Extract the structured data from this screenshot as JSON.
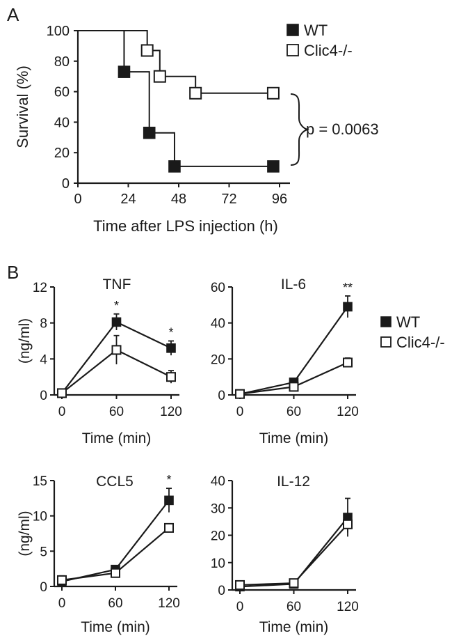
{
  "chart_data": [
    {
      "panel": "A",
      "type": "line",
      "step": true,
      "xlabel": "Time after LPS injection (h)",
      "ylabel": "Survival (%)",
      "xlim": [
        0,
        96
      ],
      "ylim": [
        0,
        100
      ],
      "xticks": [
        0,
        24,
        48,
        72,
        96
      ],
      "yticks": [
        0,
        20,
        40,
        60,
        80,
        100
      ],
      "legend": "top-right",
      "annotation": "p = 0.0063",
      "series": [
        {
          "name": "WT",
          "marker": "filled-square",
          "steps": [
            [
              0,
              100
            ],
            [
              22,
              73
            ],
            [
              34,
              33
            ],
            [
              46,
              11
            ],
            [
              93,
              11
            ]
          ],
          "points": [
            [
              22,
              73
            ],
            [
              34,
              33
            ],
            [
              46,
              11
            ],
            [
              93,
              11
            ]
          ]
        },
        {
          "name": "Clic4-/-",
          "marker": "open-square",
          "steps": [
            [
              0,
              100
            ],
            [
              33,
              87
            ],
            [
              39,
              70
            ],
            [
              56,
              59
            ],
            [
              93,
              59
            ]
          ],
          "points": [
            [
              33,
              87
            ],
            [
              39,
              70
            ],
            [
              56,
              59
            ],
            [
              93,
              59
            ]
          ]
        }
      ]
    },
    {
      "panel": "B",
      "type": "line",
      "title": "TNF",
      "xlabel": "Time (min)",
      "ylabel": "(ng/ml)",
      "x": [
        0,
        60,
        120
      ],
      "xlim": [
        0,
        120
      ],
      "ylim": [
        0,
        12
      ],
      "yticks": [
        0,
        4,
        8,
        12
      ],
      "series": [
        {
          "name": "WT",
          "marker": "filled-square",
          "values": [
            0.2,
            8.1,
            5.2
          ],
          "errors": [
            0,
            0.9,
            0.8
          ]
        },
        {
          "name": "Clic4-/-",
          "marker": "open-square",
          "values": [
            0.2,
            5.0,
            2.0
          ],
          "errors": [
            0,
            1.6,
            0.7
          ]
        }
      ],
      "significance": [
        {
          "x": 60,
          "label": "*"
        },
        {
          "x": 120,
          "label": "*"
        }
      ]
    },
    {
      "panel": "B",
      "type": "line",
      "title": "IL-6",
      "xlabel": "Time (min)",
      "ylabel": "",
      "x": [
        0,
        60,
        120
      ],
      "xlim": [
        0,
        120
      ],
      "ylim": [
        0,
        60
      ],
      "yticks": [
        0,
        20,
        40,
        60
      ],
      "legend": "right",
      "series": [
        {
          "name": "WT",
          "marker": "filled-square",
          "values": [
            0.5,
            7,
            49
          ],
          "errors": [
            0,
            1,
            6
          ]
        },
        {
          "name": "Clic4-/-",
          "marker": "open-square",
          "values": [
            0.5,
            4.5,
            18
          ],
          "errors": [
            0,
            1,
            2.5
          ]
        }
      ],
      "significance": [
        {
          "x": 120,
          "label": "**"
        }
      ]
    },
    {
      "panel": "B",
      "type": "line",
      "title": "CCL5",
      "xlabel": "Time (min)",
      "ylabel": "(ng/ml)",
      "x": [
        0,
        60,
        120
      ],
      "xlim": [
        0,
        120
      ],
      "ylim": [
        0,
        15
      ],
      "yticks": [
        0,
        5,
        10,
        15
      ],
      "series": [
        {
          "name": "WT",
          "marker": "filled-square",
          "values": [
            0.7,
            2.4,
            12.2
          ],
          "errors": [
            0.8,
            0.5,
            1.7
          ]
        },
        {
          "name": "Clic4-/-",
          "marker": "open-square",
          "values": [
            0.9,
            1.9,
            8.3
          ],
          "errors": [
            0.5,
            0.6,
            0.4
          ]
        }
      ],
      "significance": [
        {
          "x": 120,
          "label": "*"
        }
      ]
    },
    {
      "panel": "B",
      "type": "line",
      "title": "IL-12",
      "xlabel": "Time (min)",
      "ylabel": "",
      "x": [
        0,
        60,
        120
      ],
      "xlim": [
        0,
        120
      ],
      "ylim": [
        0,
        40
      ],
      "yticks": [
        0,
        10,
        20,
        30,
        40
      ],
      "series": [
        {
          "name": "WT",
          "marker": "filled-square",
          "values": [
            1.2,
            2.2,
            26.5
          ],
          "errors": [
            0.5,
            0.5,
            7
          ]
        },
        {
          "name": "Clic4-/-",
          "marker": "open-square",
          "values": [
            1.8,
            2.5,
            24
          ],
          "errors": [
            0.8,
            0.5,
            3
          ]
        }
      ],
      "significance": []
    }
  ],
  "labels": {
    "panel_a": "A",
    "panel_b": "B"
  },
  "legend": {
    "wt": "WT",
    "ko": "Clic4-/-"
  }
}
